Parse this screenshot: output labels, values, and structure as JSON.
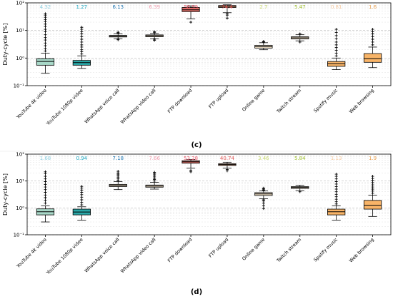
{
  "chart_data": [
    {
      "panel_label": "(c)",
      "type": "box",
      "ylabel": "Duty-cycle [%]",
      "yscale": "log",
      "ylim": [
        0.1,
        100
      ],
      "yticks": [
        {
          "value": 0.1,
          "label": "10⁻¹"
        },
        {
          "value": 1,
          "label": "10⁰"
        },
        {
          "value": 10,
          "label": "10¹"
        },
        {
          "value": 100,
          "label": "10²"
        }
      ],
      "grid": true,
      "categories": [
        "YouTube 4k video",
        "YouTube 1080p video",
        "WhatsApp voice call",
        "WhatsApp video call",
        "FTP download",
        "FTP upload",
        "Online game",
        "Twitch stream",
        "Spotify music",
        "Web browsing"
      ],
      "mean_labels": [
        "4.32",
        "1.27",
        "6.13",
        "6.39",
        "56.99",
        "74.4",
        "2.7",
        "5.47",
        "0.81",
        "1.6"
      ],
      "label_colors": [
        "#8fcfe0",
        "#1aa6c0",
        "#1f77b4",
        "#f0a0b0",
        "#e85868",
        "#e05555",
        "#c8d870",
        "#a0c030",
        "#f5c9a0",
        "#e8a050"
      ],
      "box_colors": [
        "#a8d8c8",
        "#2aa8a8",
        "#f2e2c8",
        "#f2e2c8",
        "#e07068",
        "#f0a078",
        "#f2e2c8",
        "#f2e2c8",
        "#f8b468",
        "#f8b468"
      ],
      "boxes": [
        {
          "whislo": 0.28,
          "q1": 0.55,
          "med": 0.75,
          "q3": 0.95,
          "whishi": 1.5,
          "fliers": [
            1.8,
            2.2,
            2.8,
            3.5,
            4.5,
            5.5,
            7,
            9,
            11,
            14,
            17,
            21,
            25,
            30,
            36,
            40
          ]
        },
        {
          "whislo": 0.42,
          "q1": 0.55,
          "med": 0.68,
          "q3": 0.82,
          "whishi": 1.2,
          "fliers": [
            1.4,
            1.7,
            2.0,
            2.5,
            3.0,
            3.8,
            4.8,
            6,
            7.5,
            9,
            11,
            13
          ]
        },
        {
          "whislo": 5.0,
          "q1": 5.8,
          "med": 6.2,
          "q3": 6.6,
          "whishi": 7.6,
          "fliers": [
            4.6,
            4.9,
            8.1,
            8.6
          ]
        },
        {
          "whislo": 5.0,
          "q1": 5.9,
          "med": 6.4,
          "q3": 6.9,
          "whishi": 7.8,
          "fliers": [
            4.4,
            4.8,
            8.3,
            8.9
          ]
        },
        {
          "whislo": 26,
          "q1": 48,
          "med": 56,
          "q3": 68,
          "whishi": 78,
          "fliers": [
            20
          ]
        },
        {
          "whislo": 44,
          "q1": 68,
          "med": 75,
          "q3": 80,
          "whishi": 85,
          "fliers": [
            28,
            36,
            40
          ]
        },
        {
          "whislo": 2.0,
          "q1": 2.3,
          "med": 2.6,
          "q3": 2.9,
          "whishi": 3.6,
          "fliers": [
            3.8,
            4.0
          ]
        },
        {
          "whislo": 4.2,
          "q1": 4.9,
          "med": 5.4,
          "q3": 5.9,
          "whishi": 7.0,
          "fliers": [
            3.8,
            7.5
          ]
        },
        {
          "whislo": 0.38,
          "q1": 0.5,
          "med": 0.62,
          "q3": 0.75,
          "whishi": 1.0,
          "fliers": [
            1.2,
            1.5,
            1.9,
            2.4,
            3.0,
            3.8,
            5,
            6.5,
            8.5,
            11
          ]
        },
        {
          "whislo": 0.45,
          "q1": 0.7,
          "med": 0.95,
          "q3": 1.45,
          "whishi": 2.5,
          "fliers": [
            3,
            3.8,
            4.8,
            6,
            7.5,
            9,
            11
          ]
        }
      ]
    },
    {
      "panel_label": "(d)",
      "type": "box",
      "ylabel": "Duty-cycle [%]",
      "yscale": "log",
      "ylim": [
        0.1,
        100
      ],
      "yticks": [
        {
          "value": 0.1,
          "label": "10⁻¹"
        },
        {
          "value": 1,
          "label": "10⁰"
        },
        {
          "value": 10,
          "label": "10¹"
        },
        {
          "value": 100,
          "label": "10²"
        }
      ],
      "grid": true,
      "categories": [
        "YouTube 4k video",
        "YouTube 1080p video",
        "WhatsApp voice call",
        "WhatsApp video call",
        "FTP download",
        "FTP upload",
        "Online game",
        "Twitch stream",
        "Spotify music",
        "Web browsing"
      ],
      "mean_labels": [
        "1.68",
        "0.94",
        "7.18",
        "7.66",
        "53.28",
        "40.74",
        "3.46",
        "5.84",
        "1.13",
        "1.9"
      ],
      "label_colors": [
        "#8fcfe0",
        "#1aa6c0",
        "#1f77b4",
        "#f0a0b0",
        "#e85868",
        "#e05555",
        "#c8d870",
        "#a0c030",
        "#f5c9a0",
        "#e8a050"
      ],
      "box_colors": [
        "#a8d8c8",
        "#2aa8a8",
        "#f2e2c8",
        "#f2e2c8",
        "#e07068",
        "#f0a078",
        "#f2e2c8",
        "#f2e2c8",
        "#f8b468",
        "#f8b468"
      ],
      "boxes": [
        {
          "whislo": 0.3,
          "q1": 0.55,
          "med": 0.72,
          "q3": 0.92,
          "whishi": 1.2,
          "fliers": [
            1.5,
            1.9,
            2.4,
            3.0,
            3.8,
            4.8,
            6,
            7.5,
            9.5,
            12,
            15,
            19,
            22
          ]
        },
        {
          "whislo": 0.35,
          "q1": 0.55,
          "med": 0.7,
          "q3": 0.9,
          "whishi": 1.1,
          "fliers": [
            1.3,
            1.6,
            2.0,
            2.5,
            3.1,
            3.8,
            4.6,
            5.5,
            6.3
          ]
        },
        {
          "whislo": 4.8,
          "q1": 6.2,
          "med": 6.9,
          "q3": 7.5,
          "whishi": 9.5,
          "fliers": [
            10.5,
            12,
            14,
            16,
            18,
            20,
            23
          ]
        },
        {
          "whislo": 5.0,
          "q1": 5.9,
          "med": 6.5,
          "q3": 7.1,
          "whishi": 9.0,
          "fliers": [
            10,
            11.5,
            13,
            15,
            17,
            19,
            21
          ]
        },
        {
          "whislo": 30,
          "q1": 46,
          "med": 52,
          "q3": 57,
          "whishi": 63,
          "fliers": [
            22,
            25
          ]
        },
        {
          "whislo": 30,
          "q1": 38,
          "med": 41,
          "q3": 44,
          "whishi": 50,
          "fliers": [
            24,
            27
          ]
        },
        {
          "whislo": 2.2,
          "q1": 2.9,
          "med": 3.3,
          "q3": 3.7,
          "whishi": 4.3,
          "fliers": [
            0.95,
            1.2,
            1.5,
            1.8,
            2.0,
            4.6,
            5.0,
            5.4
          ]
        },
        {
          "whislo": 4.4,
          "q1": 5.3,
          "med": 5.8,
          "q3": 6.2,
          "whishi": 7.0,
          "fliers": [
            4.0
          ]
        },
        {
          "whislo": 0.35,
          "q1": 0.55,
          "med": 0.72,
          "q3": 0.9,
          "whishi": 1.2,
          "fliers": [
            1.4,
            1.7,
            2.1,
            2.6,
            3.2,
            4.0,
            5.0,
            6.2,
            7.7,
            9.5,
            12,
            15,
            18
          ]
        },
        {
          "whislo": 0.48,
          "q1": 0.9,
          "med": 1.25,
          "q3": 1.9,
          "whishi": 3.0,
          "fliers": [
            3.5,
            4.2,
            5.0,
            6.0,
            7.2,
            8.7,
            10.5,
            12.5,
            15
          ]
        }
      ]
    }
  ]
}
